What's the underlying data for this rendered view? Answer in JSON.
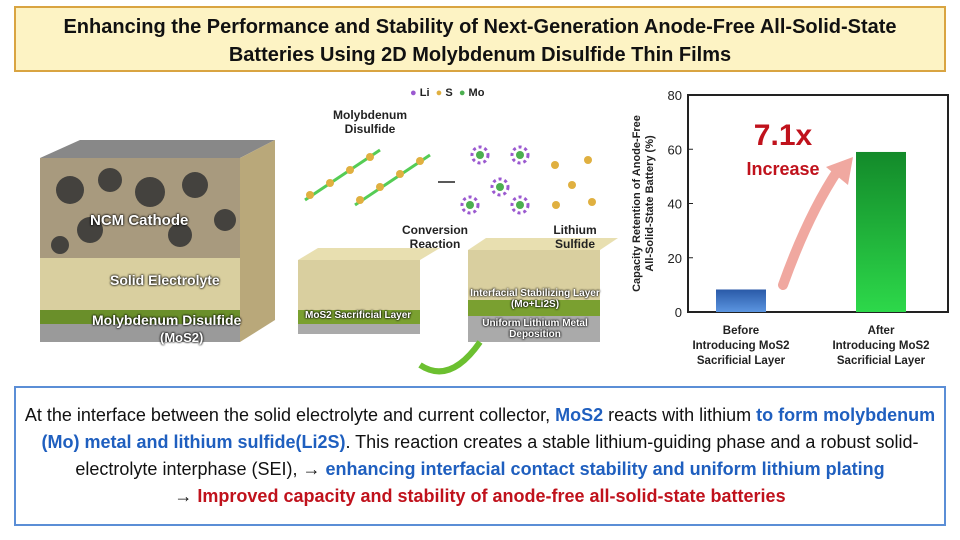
{
  "title": {
    "line1": "Enhancing the Performance and Stability of Next-Generation Anode-Free All-Solid-State",
    "line2": "Batteries Using 2D Molybdenum Disulfide Thin Films"
  },
  "illustration": {
    "legend": [
      {
        "label": "Li",
        "color": "#9b59d0"
      },
      {
        "label": "S",
        "color": "#e0b040"
      },
      {
        "label": "Mo",
        "color": "#4caf50"
      }
    ],
    "cell_labels": {
      "cathode": "NCM  Cathode",
      "electrolyte": "Solid Electrolyte",
      "mos2": "Molybdenum Disulfide",
      "mos2_formula": "(MoS2)"
    },
    "mos2_label": "Molybdenum Disulfide",
    "conversion": "Conversion Reaction",
    "li2s": "Lithium Sulfide",
    "sacrificial": "MoS2 Sacrificial Layer",
    "stabilizing": "Interfacial Stabilizing Layer (Mo+Li2S)",
    "deposition": "Uniform Lithium Metal Deposition"
  },
  "chart_data": {
    "type": "bar",
    "categories": [
      "Before Introducing MoS2 Sacrificial Layer",
      "After Introducing MoS2 Sacrificial Layer"
    ],
    "values": [
      8.3,
      59
    ],
    "colors": [
      "#3f78d0",
      "#22b83a"
    ],
    "ylabel": "Capacity Retention of Anode-Free All-Solid-State Battery (%)",
    "ylim": [
      0,
      80
    ],
    "yticks": [
      0,
      20,
      40,
      60,
      80
    ],
    "annotation": {
      "value": "7.1x",
      "text": "Increase"
    }
  },
  "description": {
    "p1": "At the interface between the solid electrolyte and current collector, ",
    "p2": "MoS2",
    "p3": " reacts with lithium ",
    "p4": "to form molybdenum (Mo) metal and lithium sulfide(Li2S)",
    "p5": ". This reaction creates a stable lithium-guiding phase and a robust solid-electrolyte interphase (SEI), → ",
    "p6": "enhancing interfacial contact stability and uniform lithium plating",
    "p7": "→ ",
    "p8": "Improved capacity and stability of anode-free all-solid-state batteries"
  }
}
